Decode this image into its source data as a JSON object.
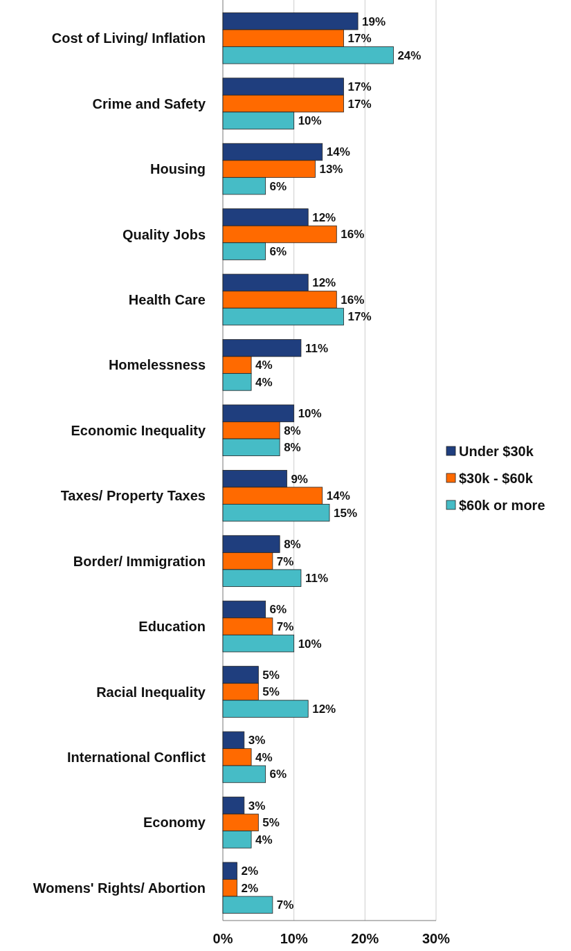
{
  "chart_data": {
    "type": "bar",
    "orientation": "horizontal",
    "categories": [
      "Cost of Living/ Inflation",
      "Crime and Safety",
      "Housing",
      "Quality Jobs",
      "Health Care",
      "Homelessness",
      "Economic Inequality",
      "Taxes/ Property Taxes",
      "Border/ Immigration",
      "Education",
      "Racial Inequality",
      "International Conflict",
      "Economy",
      "Womens' Rights/ Abortion"
    ],
    "series": [
      {
        "name": "Under $30k",
        "color": "#1f3e7e",
        "values": [
          19,
          17,
          14,
          12,
          12,
          11,
          10,
          9,
          8,
          6,
          5,
          3,
          3,
          2
        ],
        "value_labels": [
          "19%",
          "17%",
          "14%",
          "12%",
          "12%",
          "11%",
          "10%",
          "9%",
          "8%",
          "6%",
          "5%",
          "3%",
          "3%",
          "2%"
        ]
      },
      {
        "name": "$30k - $60k",
        "color": "#ff6a00",
        "values": [
          17,
          17,
          13,
          16,
          16,
          4,
          8,
          14,
          7,
          7,
          5,
          4,
          5,
          2
        ],
        "value_labels": [
          "17%",
          "17%",
          "13%",
          "16%",
          "16%",
          "4%",
          "8%",
          "14%",
          "7%",
          "7%",
          "5%",
          "4%",
          "5%",
          "2%"
        ]
      },
      {
        "name": "$60k or more",
        "color": "#46bcc6",
        "values": [
          24,
          10,
          6,
          6,
          17,
          4,
          8,
          15,
          11,
          10,
          12,
          6,
          4,
          7
        ],
        "value_labels": [
          "24%",
          "10%",
          "6%",
          "6%",
          "17%",
          "4%",
          "8%",
          "15%",
          "11%",
          "10%",
          "12%",
          "6%",
          "4%",
          "7%"
        ]
      }
    ],
    "xlim": [
      0,
      30
    ],
    "xticks": [
      {
        "value": 0,
        "label": "0%"
      },
      {
        "value": 10,
        "label": "10%"
      },
      {
        "value": 20,
        "label": "20%"
      },
      {
        "value": 30,
        "label": "30%"
      }
    ],
    "grid": "x",
    "legend": "right"
  }
}
